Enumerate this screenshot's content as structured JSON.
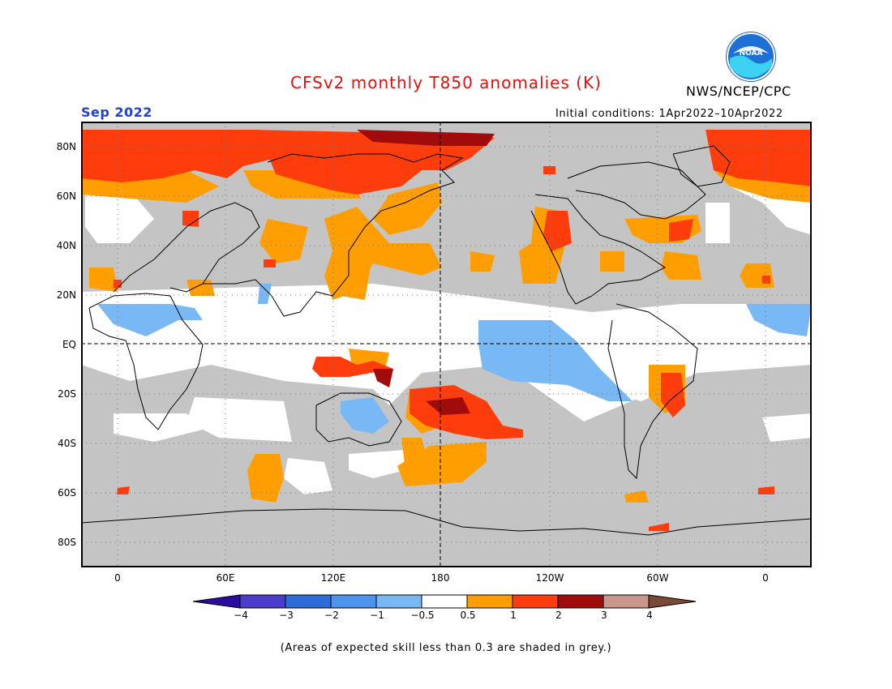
{
  "header": {
    "title": "CFSv2 monthly T850 anomalies (K)",
    "org": "NWS/NCEP/CPC",
    "logo_text": "NOAA",
    "month": "Sep 2022",
    "init_conditions": "Initial conditions: 1Apr2022–10Apr2022"
  },
  "map": {
    "lat_labels": [
      "80N",
      "60N",
      "40N",
      "20N",
      "EQ",
      "20S",
      "40S",
      "60S",
      "80S"
    ],
    "lon_labels": [
      "0",
      "60E",
      "120E",
      "180",
      "120W",
      "60W",
      "0"
    ]
  },
  "colorbar": {
    "labels": [
      "−4",
      "−3",
      "−2",
      "−1",
      "−0.5",
      "0.5",
      "1",
      "2",
      "3",
      "4"
    ],
    "colors": [
      "#2a0c9e",
      "#4a3ccc",
      "#2c6cd8",
      "#4c94ee",
      "#78b8f4",
      "#ffffff",
      "#ff9e00",
      "#ff3c0c",
      "#a00c0c",
      "#c8968a",
      "#7a4a36"
    ]
  },
  "colors": {
    "title": "#e01010",
    "month": "#2040d0",
    "grey_low_skill": "#c4c4c4"
  },
  "footnote": "(Areas of expected skill less than 0.3 are shaded in grey.)"
}
